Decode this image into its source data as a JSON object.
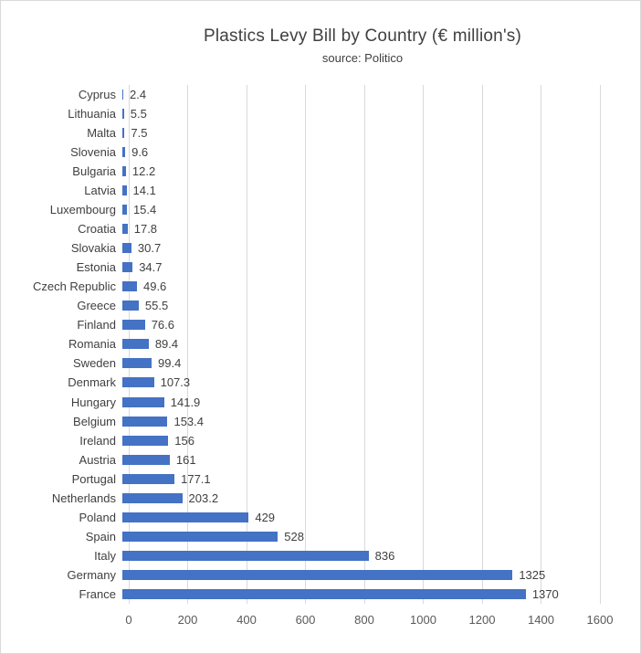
{
  "header": {
    "title": "Plastics Levy Bill by Country (€ million's)",
    "subtitle": "source: Politico"
  },
  "chart_data": {
    "type": "bar",
    "orientation": "horizontal",
    "title": "Plastics Levy Bill by Country (€ million's)",
    "subtitle": "source: Politico",
    "categories": [
      "Cyprus",
      "Lithuania",
      "Malta",
      "Slovenia",
      "Bulgaria",
      "Latvia",
      "Luxembourg",
      "Croatia",
      "Slovakia",
      "Estonia",
      "Czech Republic",
      "Greece",
      "Finland",
      "Romania",
      "Sweden",
      "Denmark",
      "Hungary",
      "Belgium",
      "Ireland",
      "Austria",
      "Portugal",
      "Netherlands",
      "Poland",
      "Spain",
      "Italy",
      "Germany",
      "France"
    ],
    "values": [
      2.4,
      5.5,
      7.5,
      9.6,
      12.2,
      14.1,
      15.4,
      17.8,
      30.7,
      34.7,
      49.6,
      55.5,
      76.6,
      89.4,
      99.4,
      107.3,
      141.9,
      153.4,
      156,
      161,
      177.1,
      203.2,
      429,
      528,
      836,
      1325,
      1370
    ],
    "xlabel": "",
    "ylabel": "",
    "xlim": [
      0,
      1600
    ],
    "xticks": [
      0,
      200,
      400,
      600,
      800,
      1000,
      1200,
      1400,
      1600
    ],
    "grid": true,
    "legend": false,
    "data_labels": true,
    "bar_color": "#4472C4",
    "gridline_color": "#D9D9D9",
    "label_color": "#404040",
    "tick_color": "#595959"
  }
}
